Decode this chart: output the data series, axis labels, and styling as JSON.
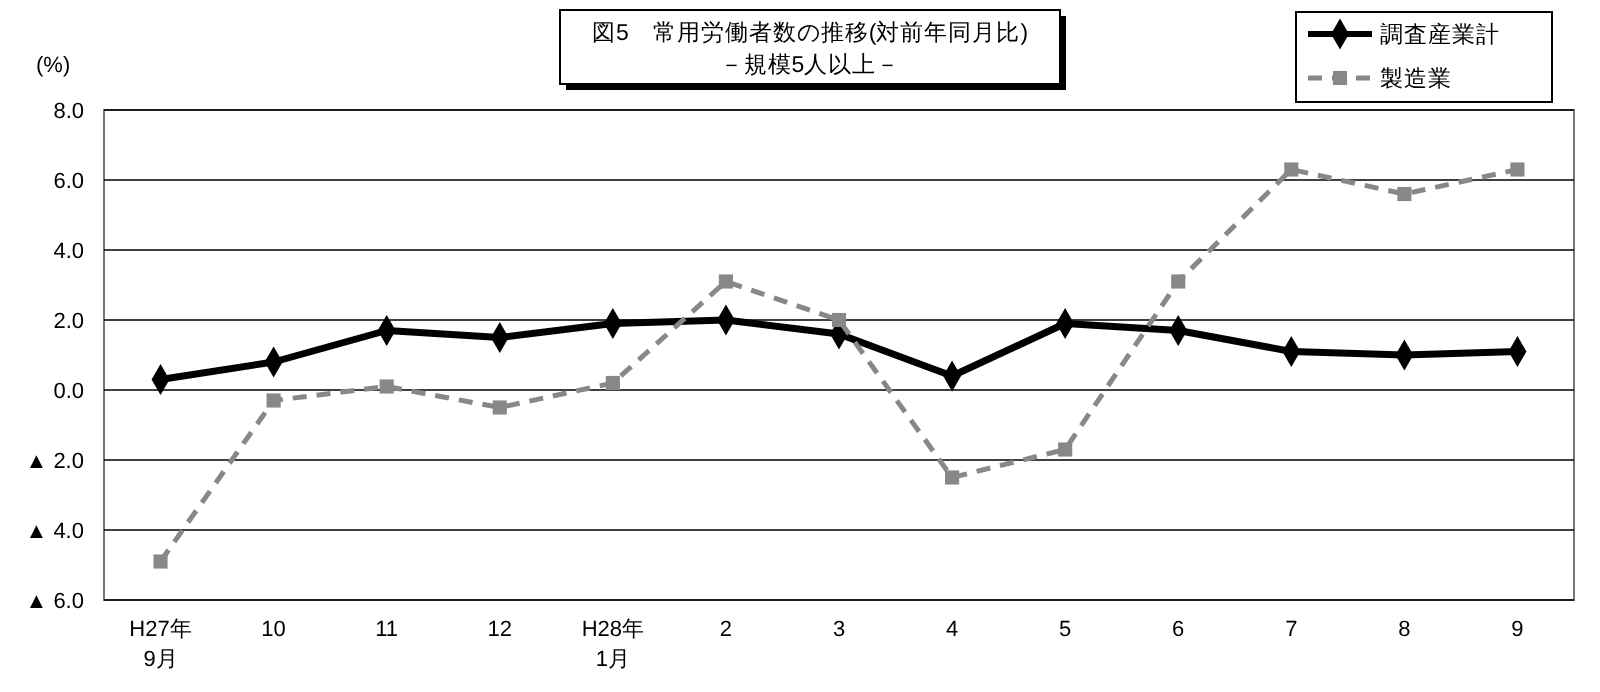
{
  "chart_data": {
    "type": "line",
    "title": "図5　常用労働者数の推移(対前年同月比)",
    "subtitle": "－規模5人以上－",
    "ylabel": "(%)",
    "categories": [
      "H27年\n9月",
      "10",
      "11",
      "12",
      "H28年\n1月",
      "2",
      "3",
      "4",
      "5",
      "6",
      "7",
      "8",
      "9"
    ],
    "series": [
      {
        "name": "調査産業計",
        "color": "#000000",
        "marker": "diamond",
        "line_style": "solid",
        "values": [
          0.3,
          0.8,
          1.7,
          1.5,
          1.9,
          2.0,
          1.6,
          0.4,
          1.9,
          1.7,
          1.1,
          1.0,
          1.1
        ]
      },
      {
        "name": "製造業",
        "color": "#888888",
        "marker": "square",
        "line_style": "dashed",
        "values": [
          -4.9,
          -0.3,
          0.1,
          -0.5,
          0.2,
          3.1,
          2.0,
          -2.5,
          -1.7,
          3.1,
          6.3,
          5.6,
          6.3
        ]
      }
    ],
    "ylim": [
      -6,
      8
    ],
    "yticks": [
      {
        "value": -6,
        "label": "▲ 6.0"
      },
      {
        "value": -4,
        "label": "▲ 4.0"
      },
      {
        "value": -2,
        "label": "▲ 2.0"
      },
      {
        "value": 0,
        "label": "0.0"
      },
      {
        "value": 2,
        "label": "2.0"
      },
      {
        "value": 4,
        "label": "4.0"
      },
      {
        "value": 6,
        "label": "6.0"
      },
      {
        "value": 8,
        "label": "8.0"
      }
    ],
    "grid": "y",
    "legend": "top right"
  }
}
